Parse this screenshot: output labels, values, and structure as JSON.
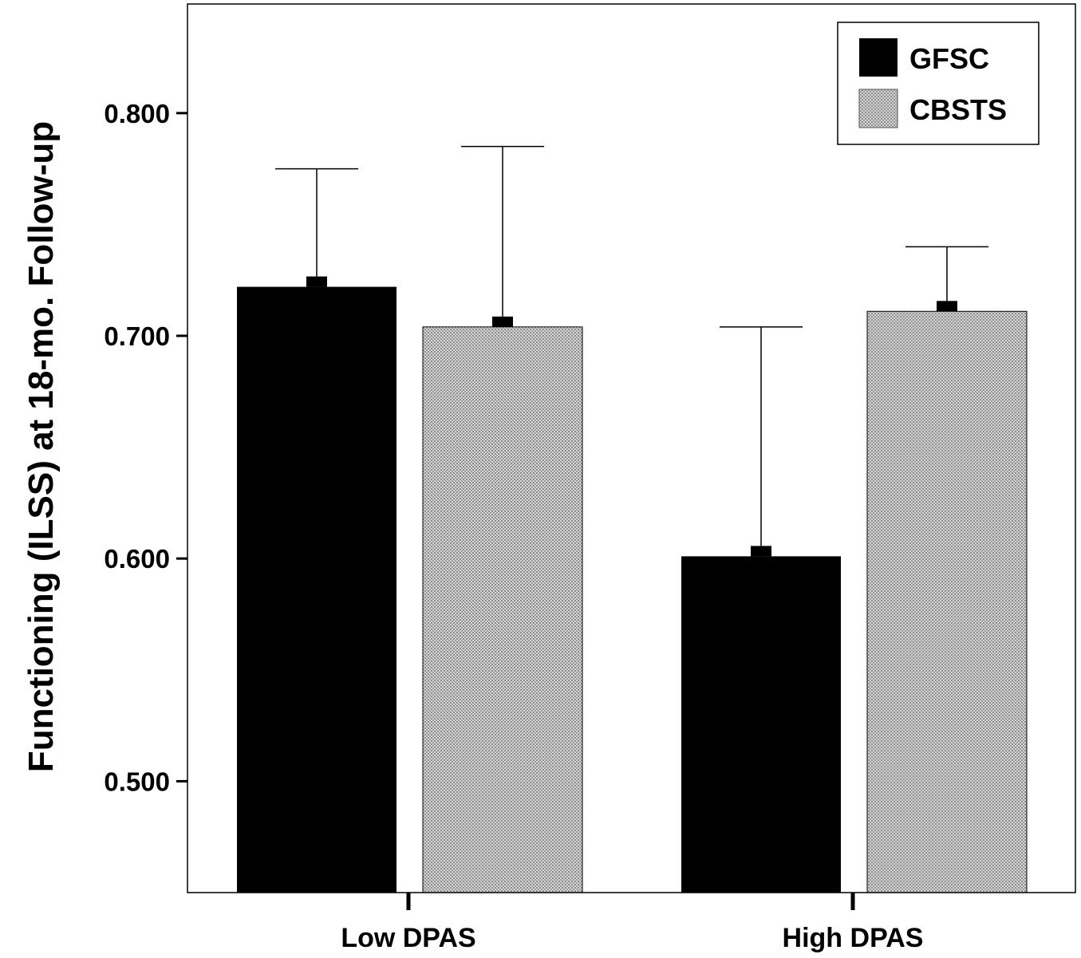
{
  "chart_data": {
    "type": "bar",
    "categories": [
      "Low DPAS",
      "High DPAS"
    ],
    "series": [
      {
        "name": "GFSC",
        "values": [
          0.722,
          0.601
        ],
        "error_upper": [
          0.775,
          0.704
        ]
      },
      {
        "name": "CBSTS",
        "values": [
          0.704,
          0.711
        ],
        "error_upper": [
          0.785,
          0.74
        ]
      }
    ],
    "title": "",
    "xlabel": "",
    "ylabel": "Functioning (ILSS) at 18-mo. Follow-up",
    "ylim": [
      0.45,
      0.849
    ],
    "yticks": [
      "0.500",
      "0.600",
      "0.700",
      "0.800"
    ],
    "ytick_values": [
      0.5,
      0.6,
      0.7,
      0.8
    ],
    "legend_position": "top-right",
    "grid": false,
    "colors": {
      "GFSC": "#000000",
      "CBSTS": "#bdbdbd"
    }
  }
}
